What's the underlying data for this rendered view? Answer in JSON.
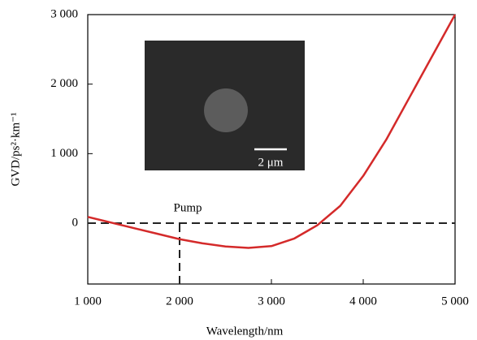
{
  "chart_data": {
    "type": "line",
    "x_label": "Wavelength/nm",
    "y_label": "GVD/ps²·km⁻¹",
    "x": [
      1000,
      1250,
      1500,
      1750,
      2000,
      2250,
      2500,
      2750,
      3000,
      3250,
      3500,
      3750,
      4000,
      4250,
      4500,
      4750,
      5000
    ],
    "series": [
      {
        "name": "GVD",
        "color": "#d42a2a",
        "values": [
          90,
          10,
          -70,
          -150,
          -230,
          -290,
          -335,
          -355,
          -330,
          -220,
          -30,
          250,
          680,
          1200,
          1800,
          2400,
          3000
        ]
      }
    ],
    "xlim": [
      1000,
      5000
    ],
    "ylim": [
      -875,
      3000
    ],
    "xticks": [
      {
        "value": 1000,
        "label": "1 000"
      },
      {
        "value": 2000,
        "label": "2 000"
      },
      {
        "value": 3000,
        "label": "3 000"
      },
      {
        "value": 4000,
        "label": "4 000"
      },
      {
        "value": 5000,
        "label": "5 000"
      }
    ],
    "yticks": [
      0,
      {
        "value": 1000,
        "label": "1 000"
      },
      {
        "value": 2000,
        "label": "2 000"
      },
      {
        "value": 3000,
        "label": "3 000"
      }
    ],
    "hline": 0,
    "vline": 2000,
    "annotations": [
      "Pump"
    ],
    "inset_label": "2 μm"
  }
}
